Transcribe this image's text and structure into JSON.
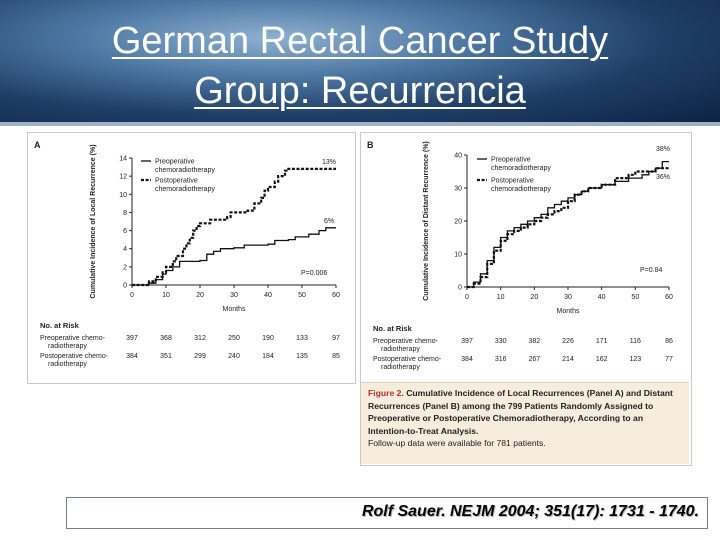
{
  "slide": {
    "title_line_1": "German Rectal Cancer Study",
    "title_line_2": "Group: Recurrencia",
    "citation": "Rolf Sauer. NEJM 2004; 351(17): 1731 - 1740."
  },
  "colors": {
    "banner": "#1f3f67",
    "curve": "#111111",
    "caption_bg": "#f7eddc",
    "figure_label": "#b5322c"
  },
  "caption": {
    "figure_label": "Figure 2.",
    "bold_text": "Cumulative Incidence of Local Recurrences (Panel A) and Distant Recurrences (Panel B) among the 799 Patients Randomly Assigned to Preoperative or Postoperative Chemoradiotherapy, According to an Intention-to-Treat Analysis.",
    "note": "Follow-up data were available for 781 patients."
  },
  "chart_data": [
    {
      "panel": "A",
      "type": "line",
      "step": true,
      "xlabel": "Months",
      "ylabel": "Cumulative Incidence of Local Recurrence (%)",
      "xlim": [
        0,
        60
      ],
      "ylim": [
        0,
        14
      ],
      "xticks": [
        0,
        10,
        20,
        30,
        40,
        50,
        60
      ],
      "yticks": [
        0,
        2,
        4,
        6,
        8,
        10,
        12,
        14
      ],
      "p_value": "P=0.006",
      "series": [
        {
          "name": "Preoperative chemoradiotherapy",
          "style": "solid",
          "end_label": "6%",
          "points": [
            [
              0,
              0
            ],
            [
              5,
              0.2
            ],
            [
              7,
              0.6
            ],
            [
              9,
              1.2
            ],
            [
              10,
              1.6
            ],
            [
              12,
              2.0
            ],
            [
              14,
              2.6
            ],
            [
              20,
              2.7
            ],
            [
              22,
              3.4
            ],
            [
              24,
              3.7
            ],
            [
              26,
              4.0
            ],
            [
              30,
              4.1
            ],
            [
              33,
              4.4
            ],
            [
              40,
              4.5
            ],
            [
              42,
              4.9
            ],
            [
              46,
              5.0
            ],
            [
              48,
              5.3
            ],
            [
              52,
              5.6
            ],
            [
              55,
              6.0
            ],
            [
              57,
              6.3
            ],
            [
              60,
              6.3
            ]
          ]
        },
        {
          "name": "Postoperative chemoradiotherapy",
          "style": "dashed",
          "end_label": "13%",
          "points": [
            [
              0,
              0
            ],
            [
              5,
              0.4
            ],
            [
              7,
              0.9
            ],
            [
              9,
              1.4
            ],
            [
              10,
              2.0
            ],
            [
              12,
              2.6
            ],
            [
              13,
              3.2
            ],
            [
              15,
              4.0
            ],
            [
              16,
              4.6
            ],
            [
              17,
              5.2
            ],
            [
              18,
              6.0
            ],
            [
              19,
              6.5
            ],
            [
              20,
              6.8
            ],
            [
              23,
              7.2
            ],
            [
              28,
              7.5
            ],
            [
              29,
              8.0
            ],
            [
              34,
              8.2
            ],
            [
              36,
              9.0
            ],
            [
              38,
              9.6
            ],
            [
              39,
              10.4
            ],
            [
              40,
              10.8
            ],
            [
              42,
              11.4
            ],
            [
              43,
              12.0
            ],
            [
              45,
              12.6
            ],
            [
              46,
              12.8
            ],
            [
              60,
              12.8
            ]
          ]
        }
      ],
      "at_risk": {
        "heading": "No. at Risk",
        "rows": [
          {
            "label_1": "Preoperative chemo-",
            "label_2": "radiotherapy",
            "values": [
              397,
              368,
              312,
              250,
              190,
              133,
              97
            ]
          },
          {
            "label_1": "Postoperative chemo-",
            "label_2": "radiotherapy",
            "values": [
              384,
              351,
              299,
              240,
              184,
              135,
              85
            ]
          }
        ]
      }
    },
    {
      "panel": "B",
      "type": "line",
      "step": true,
      "xlabel": "Months",
      "ylabel": "Cumulative Incidence of Distant Recurrence (%)",
      "xlim": [
        0,
        60
      ],
      "ylim": [
        0,
        40
      ],
      "xticks": [
        0,
        10,
        20,
        30,
        40,
        50,
        60
      ],
      "yticks": [
        0,
        10,
        20,
        30,
        40
      ],
      "p_value": "P=0.84",
      "series": [
        {
          "name": "Preoperative chemoradiotherapy",
          "style": "solid",
          "end_label": "38%",
          "points": [
            [
              0,
              0
            ],
            [
              2,
              1.5
            ],
            [
              4,
              4
            ],
            [
              6,
              8
            ],
            [
              8,
              12
            ],
            [
              10,
              15
            ],
            [
              12,
              17
            ],
            [
              14,
              18
            ],
            [
              16,
              19
            ],
            [
              18,
              20
            ],
            [
              20,
              21
            ],
            [
              22,
              22
            ],
            [
              24,
              24
            ],
            [
              26,
              25
            ],
            [
              28,
              26
            ],
            [
              30,
              27
            ],
            [
              32,
              28
            ],
            [
              34,
              29
            ],
            [
              36,
              30
            ],
            [
              40,
              31
            ],
            [
              44,
              32
            ],
            [
              48,
              33
            ],
            [
              52,
              34
            ],
            [
              54,
              35
            ],
            [
              56,
              36
            ],
            [
              58,
              38
            ],
            [
              60,
              38
            ]
          ]
        },
        {
          "name": "Postoperative chemoradiotherapy",
          "style": "dashed",
          "end_label": "36%",
          "points": [
            [
              0,
              0
            ],
            [
              2,
              1
            ],
            [
              4,
              3
            ],
            [
              6,
              7
            ],
            [
              8,
              11
            ],
            [
              10,
              14
            ],
            [
              12,
              16
            ],
            [
              14,
              17
            ],
            [
              16,
              18
            ],
            [
              18,
              19
            ],
            [
              20,
              20
            ],
            [
              22,
              21
            ],
            [
              24,
              22
            ],
            [
              26,
              23
            ],
            [
              28,
              24
            ],
            [
              30,
              26
            ],
            [
              32,
              28
            ],
            [
              34,
              29
            ],
            [
              36,
              30
            ],
            [
              40,
              31
            ],
            [
              44,
              33
            ],
            [
              48,
              34
            ],
            [
              50,
              35
            ],
            [
              54,
              35
            ],
            [
              56,
              36
            ],
            [
              60,
              36
            ]
          ]
        }
      ],
      "at_risk": {
        "heading": "No. at Risk",
        "rows": [
          {
            "label_1": "Preoperative chemo-",
            "label_2": "radiotherapy",
            "values": [
              397,
              330,
              382,
              226,
              171,
              116,
              86
            ]
          },
          {
            "label_1": "Postoperative chemo-",
            "label_2": "radiotherapy",
            "values": [
              384,
              316,
              267,
              214,
              162,
              123,
              77
            ]
          }
        ]
      }
    }
  ]
}
